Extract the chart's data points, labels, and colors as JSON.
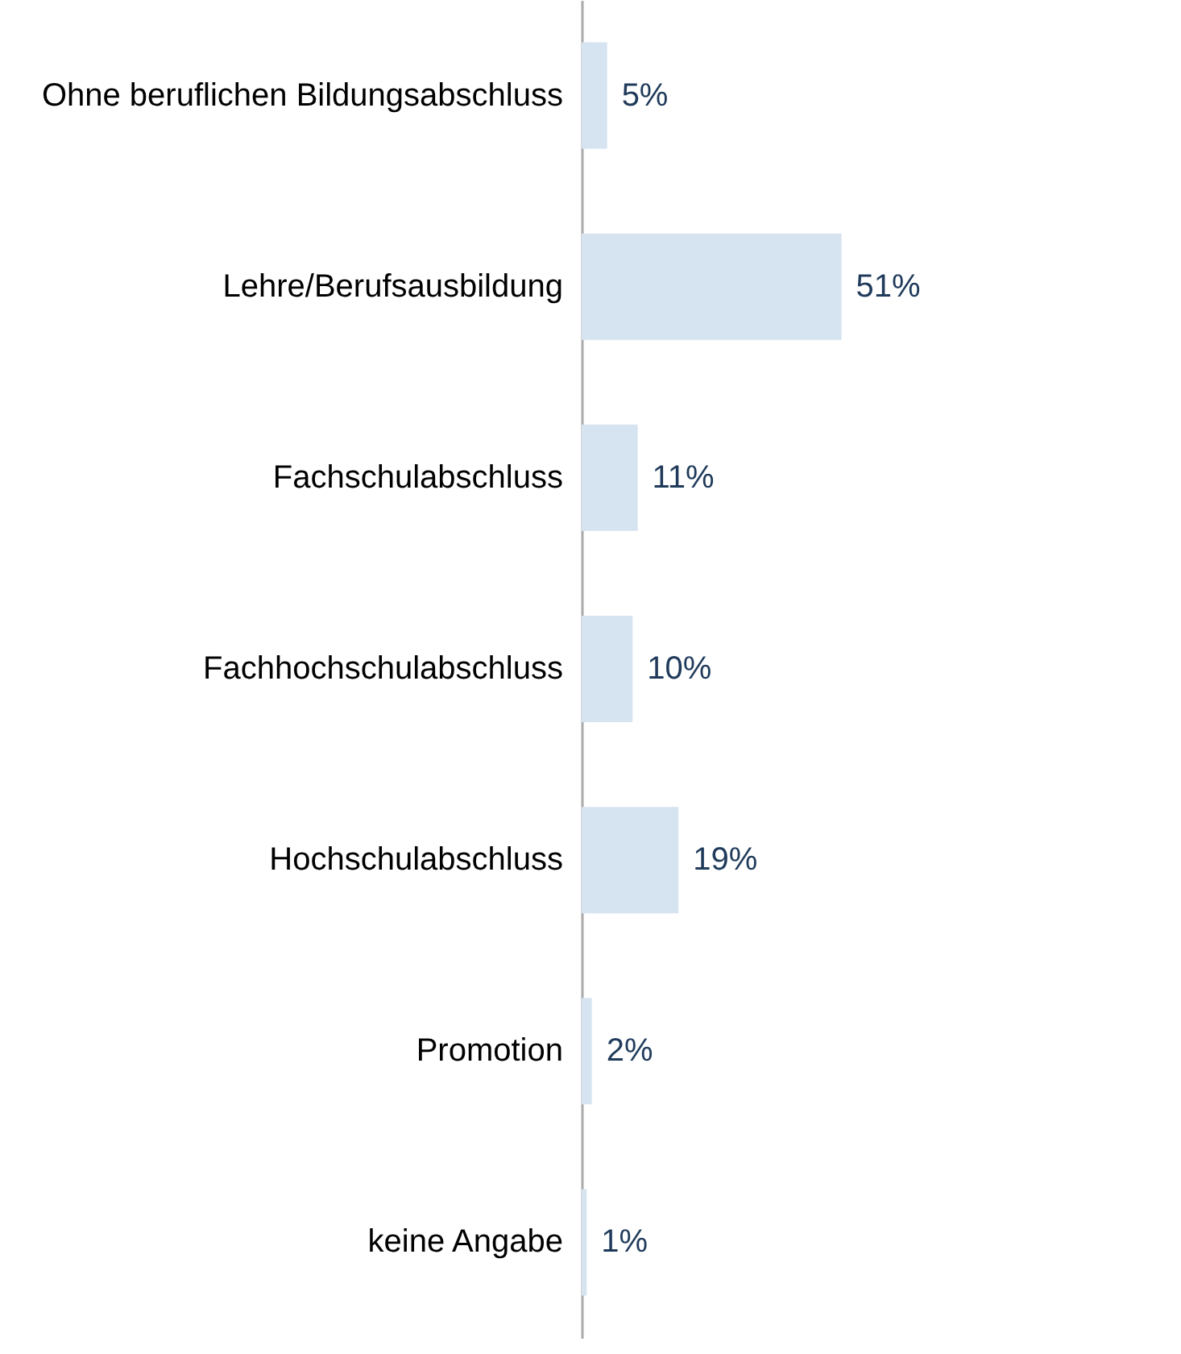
{
  "chart_data": {
    "type": "bar",
    "orientation": "horizontal",
    "categories": [
      "Ohne beruflichen Bildungsabschluss",
      "Lehre/Berufsausbildung",
      "Fachschulabschluss",
      "Fachhochschulabschluss",
      "Hochschulabschluss",
      "Promotion",
      "keine Angabe"
    ],
    "values": [
      5,
      51,
      11,
      10,
      19,
      2,
      1
    ],
    "value_labels": [
      "5%",
      "51%",
      "11%",
      "10%",
      "19%",
      "2%",
      "1%"
    ],
    "color": "#d6e3f0",
    "grid": false
  }
}
